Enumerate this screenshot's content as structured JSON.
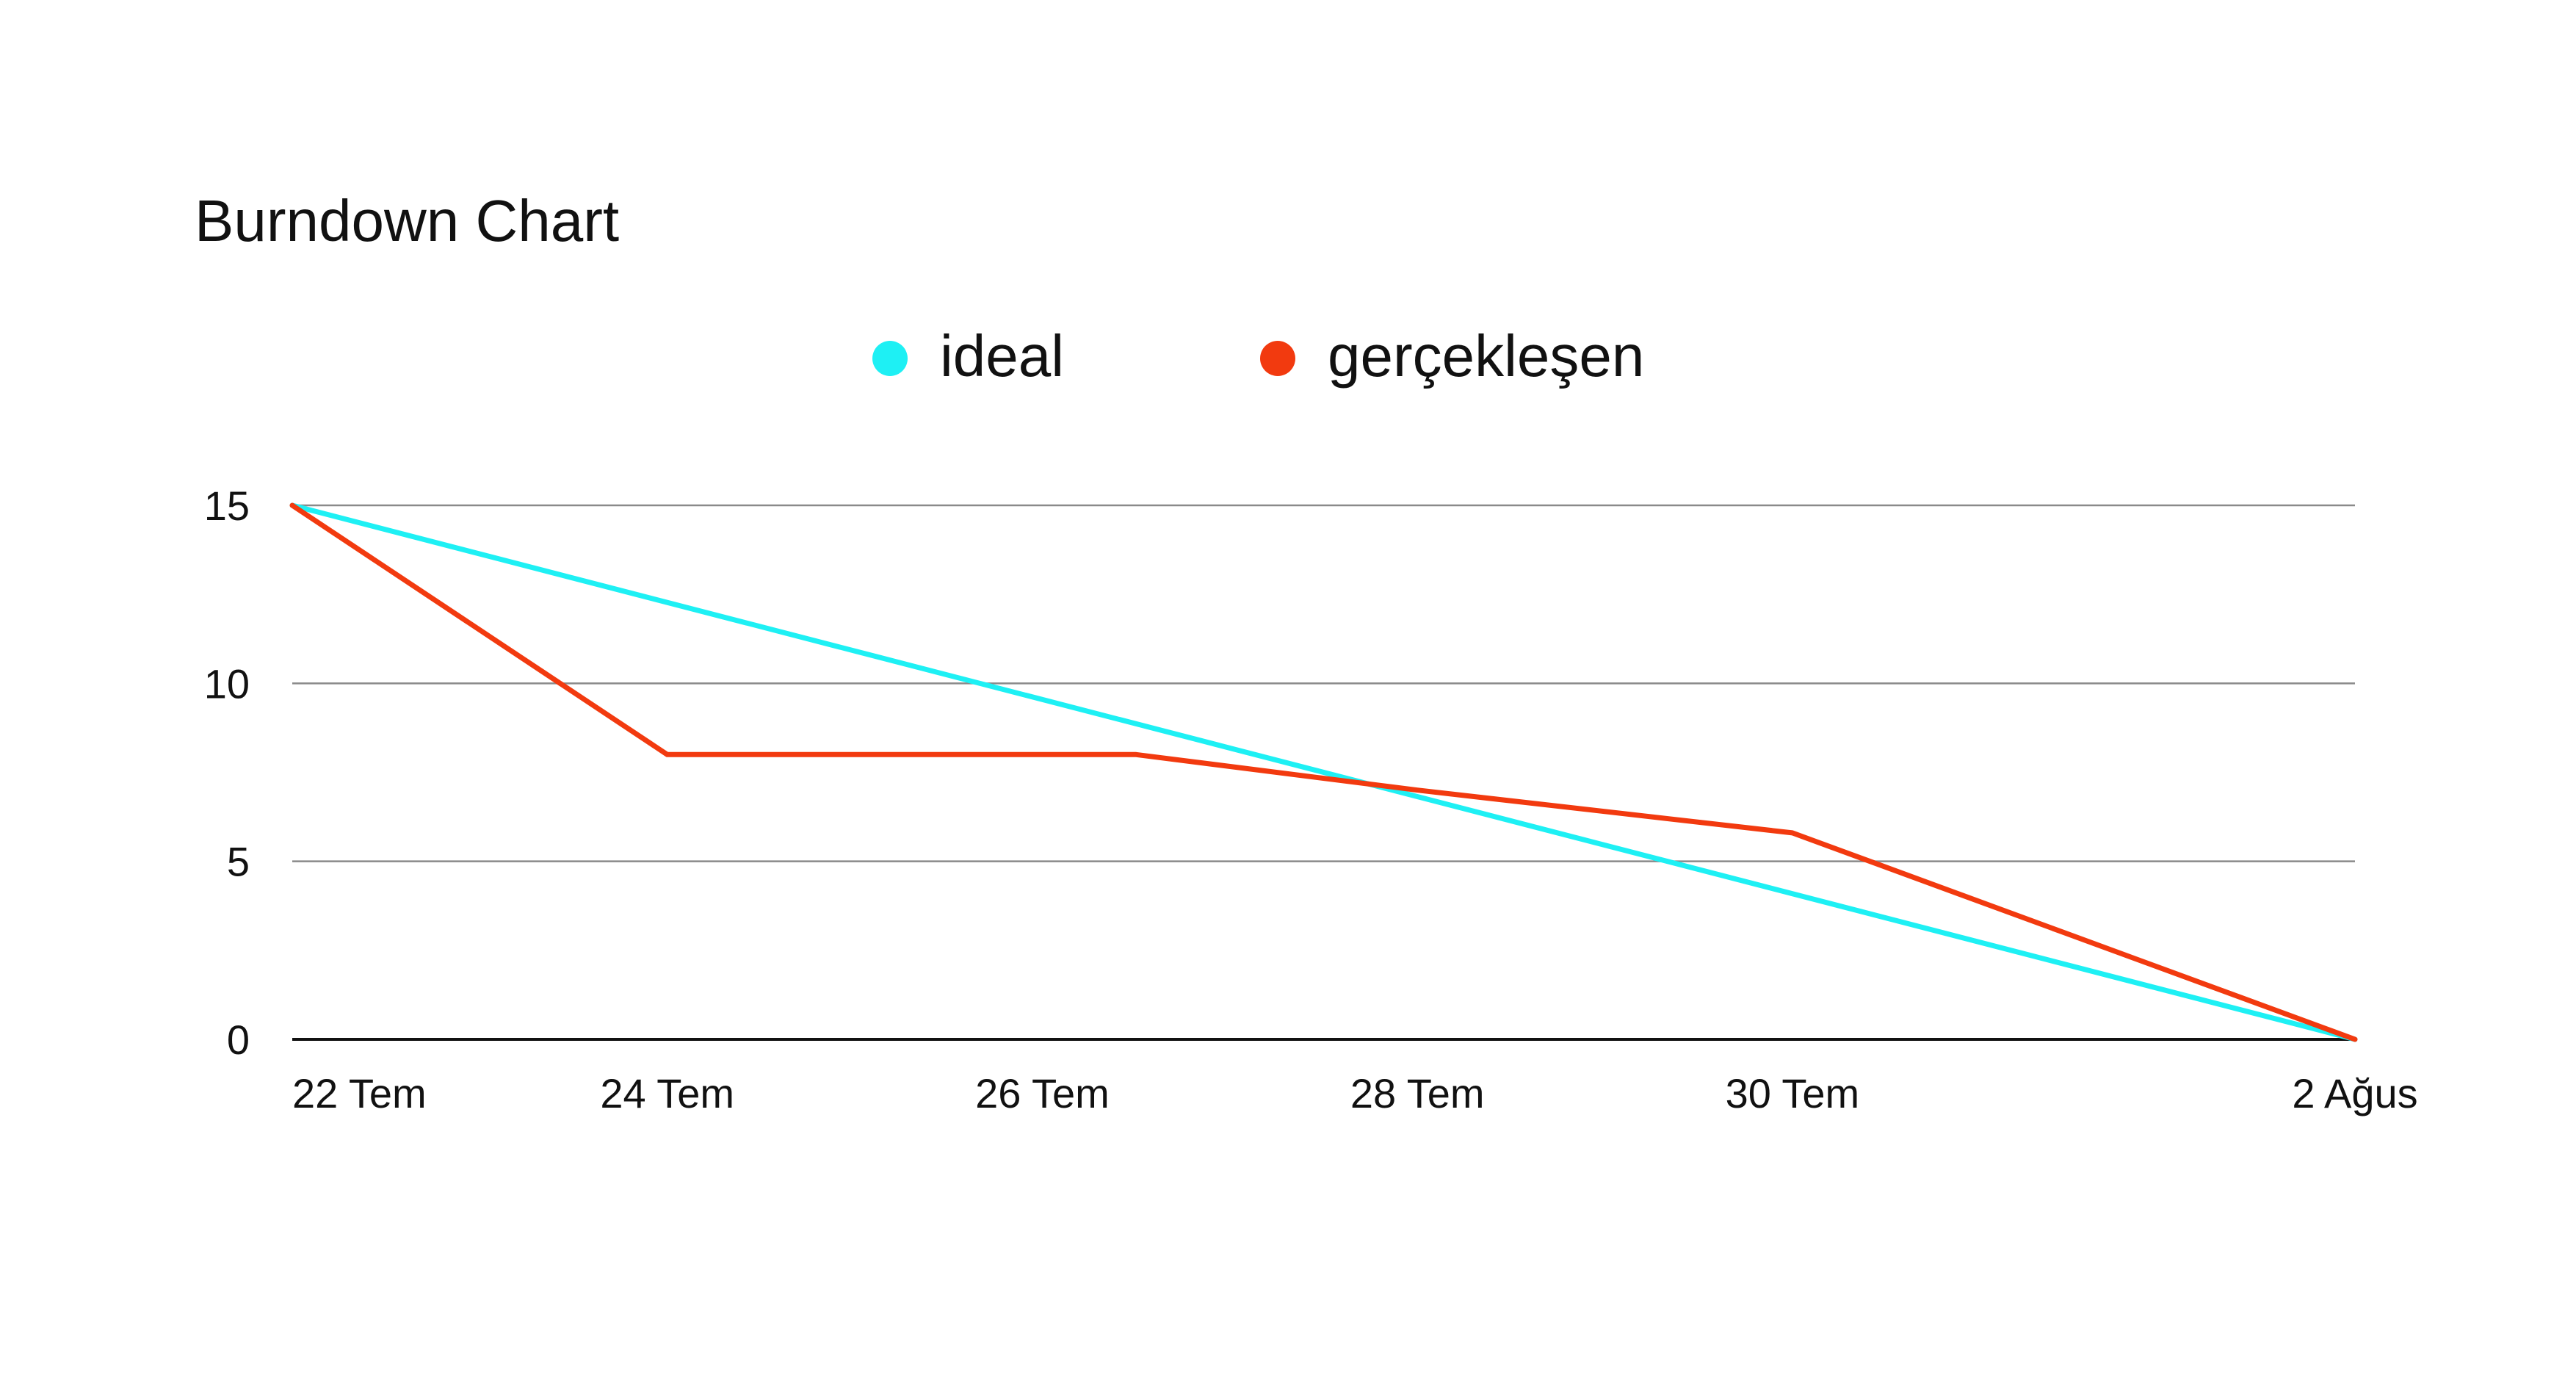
{
  "chart_data": {
    "type": "line",
    "title": "Burndown Chart",
    "xlabel": "",
    "ylabel": "",
    "x_tick_labels": [
      "22 Tem",
      "24 Tem",
      "26 Tem",
      "28 Tem",
      "30 Tem",
      "2 Ağus"
    ],
    "x_tick_days": [
      0,
      2,
      4,
      6,
      8,
      11
    ],
    "ylim": [
      0,
      15
    ],
    "y_ticks": [
      0,
      5,
      10,
      15
    ],
    "grid": true,
    "legend": "top-center",
    "series": [
      {
        "name": "ideal",
        "color": "#1ef0f4",
        "points": [
          [
            0,
            15
          ],
          [
            11,
            0
          ]
        ]
      },
      {
        "name": "gerçekleşen",
        "color": "#f23a0f",
        "points": [
          [
            0,
            15
          ],
          [
            2,
            8
          ],
          [
            4.5,
            8
          ],
          [
            6,
            7
          ],
          [
            8,
            5.8
          ],
          [
            11,
            0
          ]
        ]
      }
    ]
  }
}
